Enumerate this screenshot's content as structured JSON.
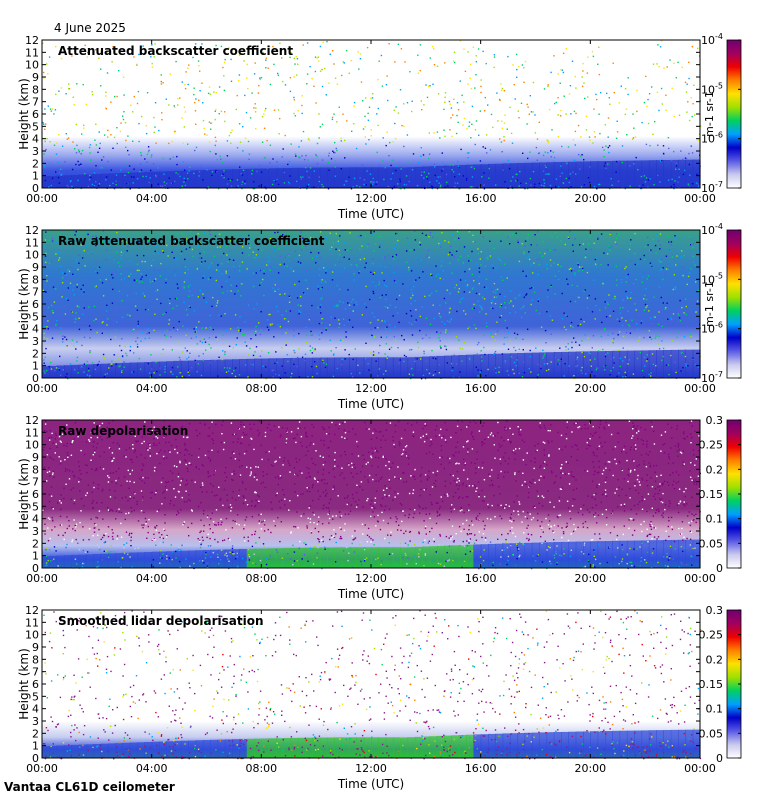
{
  "date": "4 June 2025",
  "footer": "Vantaa CL61D ceilometer",
  "chart_data": [
    {
      "type": "heatmap",
      "title": "Attenuated backscatter coefficient",
      "xlabel": "Time (UTC)",
      "ylabel": "Height (km)",
      "x_ticks": [
        "00:00",
        "04:00",
        "08:00",
        "12:00",
        "16:00",
        "20:00",
        "00:00"
      ],
      "y_ticks": [
        "0",
        "1",
        "2",
        "3",
        "4",
        "5",
        "6",
        "7",
        "8",
        "9",
        "10",
        "11",
        "12"
      ],
      "ylim": [
        0,
        12
      ],
      "colorbar": {
        "scale": "log",
        "range": [
          1e-07,
          0.0001
        ],
        "ticks": [
          "10-7",
          "10-6",
          "10-5",
          "10-4"
        ],
        "unit": "m-1 sr-1",
        "colormap": "white-blue-green-yellow-red-purple"
      }
    },
    {
      "type": "heatmap",
      "title": "Raw attenuated backscatter coefficient",
      "xlabel": "Time (UTC)",
      "ylabel": "Height (km)",
      "x_ticks": [
        "00:00",
        "04:00",
        "08:00",
        "12:00",
        "16:00",
        "20:00",
        "00:00"
      ],
      "y_ticks": [
        "0",
        "1",
        "2",
        "3",
        "4",
        "5",
        "6",
        "7",
        "8",
        "9",
        "10",
        "11",
        "12"
      ],
      "ylim": [
        0,
        12
      ],
      "colorbar": {
        "scale": "log",
        "range": [
          1e-07,
          0.0001
        ],
        "ticks": [
          "10-7",
          "10-6",
          "10-5",
          "10-4"
        ],
        "unit": "m-1 sr-1",
        "colormap": "white-blue-green-yellow-red-purple"
      }
    },
    {
      "type": "heatmap",
      "title": "Raw depolarisation",
      "xlabel": "Time (UTC)",
      "ylabel": "Height (km)",
      "x_ticks": [
        "00:00",
        "04:00",
        "08:00",
        "12:00",
        "16:00",
        "20:00",
        "00:00"
      ],
      "y_ticks": [
        "0",
        "1",
        "2",
        "3",
        "4",
        "5",
        "6",
        "7",
        "8",
        "9",
        "10",
        "11",
        "12"
      ],
      "ylim": [
        0,
        12
      ],
      "colorbar": {
        "scale": "linear",
        "range": [
          0,
          0.3
        ],
        "ticks": [
          "0",
          "0.05",
          "0.1",
          "0.15",
          "0.2",
          "0.25",
          "0.3"
        ],
        "unit": "",
        "colormap": "white-blue-green-yellow-red-purple"
      }
    },
    {
      "type": "heatmap",
      "title": "Smoothed lidar depolarisation",
      "xlabel": "Time (UTC)",
      "ylabel": "Height (km)",
      "x_ticks": [
        "00:00",
        "04:00",
        "08:00",
        "12:00",
        "16:00",
        "20:00",
        "00:00"
      ],
      "y_ticks": [
        "0",
        "1",
        "2",
        "3",
        "4",
        "5",
        "6",
        "7",
        "8",
        "9",
        "10",
        "11",
        "12"
      ],
      "ylim": [
        0,
        12
      ],
      "colorbar": {
        "scale": "linear",
        "range": [
          0,
          0.3
        ],
        "ticks": [
          "0",
          "0.05",
          "0.1",
          "0.15",
          "0.2",
          "0.25",
          "0.3"
        ],
        "unit": "",
        "colormap": "white-blue-green-yellow-red-purple"
      }
    }
  ]
}
